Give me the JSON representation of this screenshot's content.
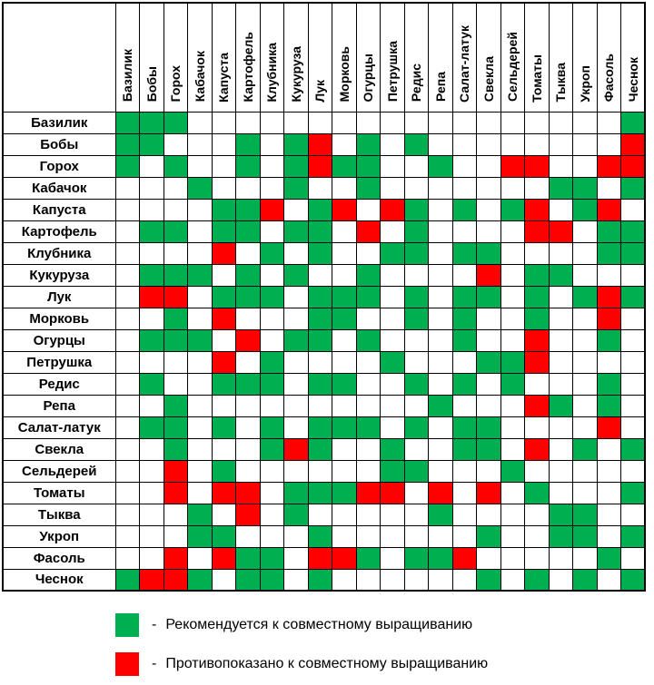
{
  "chart_data": {
    "type": "heatmap",
    "categories": [
      "Базилик",
      "Бобы",
      "Горох",
      "Кабачок",
      "Капуста",
      "Картофель",
      "Клубника",
      "Кукуруза",
      "Лук",
      "Морковь",
      "Огурцы",
      "Петрушка",
      "Редис",
      "Репа",
      "Салат-латук",
      "Свекла",
      "Сельдерей",
      "Томаты",
      "Тыква",
      "Укроп",
      "Фасоль",
      "Чеснок"
    ],
    "rows": [
      "Базилик",
      "Бобы",
      "Горох",
      "Кабачок",
      "Капуста",
      "Картофель",
      "Клубника",
      "Кукуруза",
      "Лук",
      "Морковь",
      "Огурцы",
      "Петрушка",
      "Редис",
      "Репа",
      "Салат-латук",
      "Свекла",
      "Сельдерей",
      "Томаты",
      "Тыква",
      "Укроп",
      "Фасоль",
      "Чеснок"
    ],
    "cell_encoding": {
      "G": "recommended",
      "R": "contraindicated",
      ".": "neutral"
    },
    "matrix": [
      "GGG..................G",
      "GG...G.GR.G.G........R",
      "G.G..G.GRGG..G..RR..RR",
      "...G...G..G.......GG.G",
      "....GGR.GR.RG.G.GR.GR.",
      ".GG.GG.GG.R.G....RR.GG",
      "....R.G.G..GG.GG....GG",
      ".GGG.G.G..G....R.GG...",
      ".RR.GGG.GGG.G.GG.G.GRG",
      "..G.R...GG..G.G..G..R.",
      ".GGG.R.GG.G...G..R..G.",
      "....R.G....G...GGR....",
      ".G..GGG.GG..G.G.G...G.",
      "..G..........G...RG.G.",
      ".GG.G.G.GGG.G.GG....R.",
      "..G...GRG..G..GG.R.G.G",
      "..R.G......GG...G.....",
      "..R.RR.GGGRR.R.R.G...G",
      "...G.R.G.....G....GG..",
      "...GG...G......G..GG.G",
      "..R.RGG.RRG.GGR.....G.",
      "GRRG.GG.G......G.G.G.G"
    ],
    "colors": {
      "recommended": "#00B050",
      "contraindicated": "#FF0000",
      "neutral": "#FFFFFF",
      "grid": "#000000"
    },
    "legend_position": "bottom"
  },
  "legend": {
    "items": [
      {
        "color": "#00B050",
        "dash": "-",
        "label": "Рекомендуется к совместному выращиванию"
      },
      {
        "color": "#FF0000",
        "dash": "-",
        "label": "Противопоказано к совместному выращиванию"
      }
    ]
  }
}
